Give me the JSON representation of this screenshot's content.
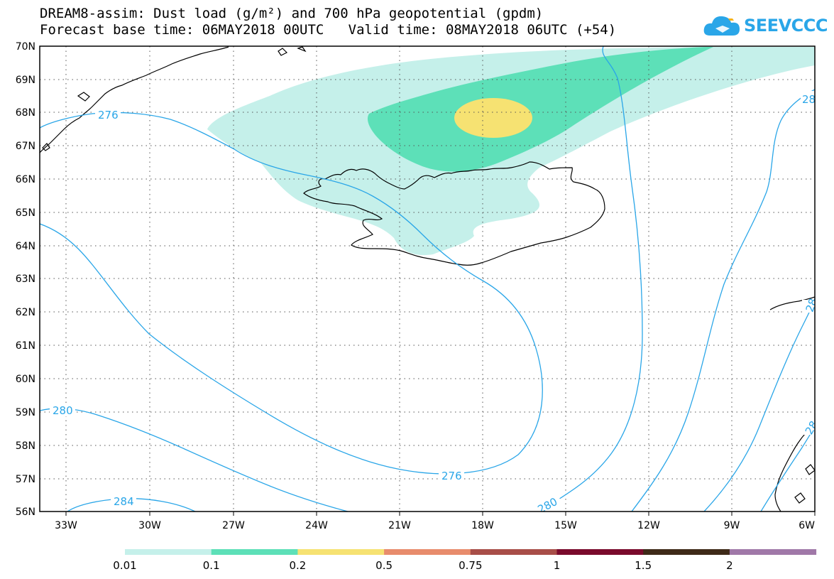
{
  "title": {
    "line1": "DREAM8-assim: Dust load (g/m²) and 700 hPa geopotential (gpdm)",
    "line2": "Forecast base time: 06MAY2018 00UTC   Valid time: 08MAY2018 06UTC (+54)"
  },
  "logo": {
    "text": "SEEVCCC",
    "icon": "cloud-icon"
  },
  "map": {
    "lat_labels": [
      "70N",
      "69N",
      "68N",
      "67N",
      "66N",
      "65N",
      "64N",
      "63N",
      "62N",
      "61N",
      "60N",
      "59N",
      "58N",
      "57N",
      "56N"
    ],
    "lon_labels": [
      "33W",
      "30W",
      "27W",
      "24W",
      "21W",
      "18W",
      "15W",
      "12W",
      "9W",
      "6W"
    ],
    "contour_color": "#2aa6e8",
    "contour_labels": [
      "276",
      "280",
      "276",
      "284",
      "280",
      "28",
      "28",
      "28"
    ],
    "dust_levels": [
      {
        "label": "0.01-0.1",
        "color": "#c5f0ea"
      },
      {
        "label": "0.1-0.2",
        "color": "#5de0b8"
      },
      {
        "label": "0.2-0.5",
        "color": "#f6e272"
      }
    ]
  },
  "colorbar": {
    "colors": [
      "#c5f0ea",
      "#5de0b8",
      "#f6e272",
      "#e88c6c",
      "#a84e48",
      "#7a0a2c",
      "#3e2a18",
      "#a078a8"
    ],
    "labels": [
      "0.01",
      "0.1",
      "0.2",
      "0.5",
      "0.75",
      "1",
      "1.5",
      "2"
    ]
  }
}
